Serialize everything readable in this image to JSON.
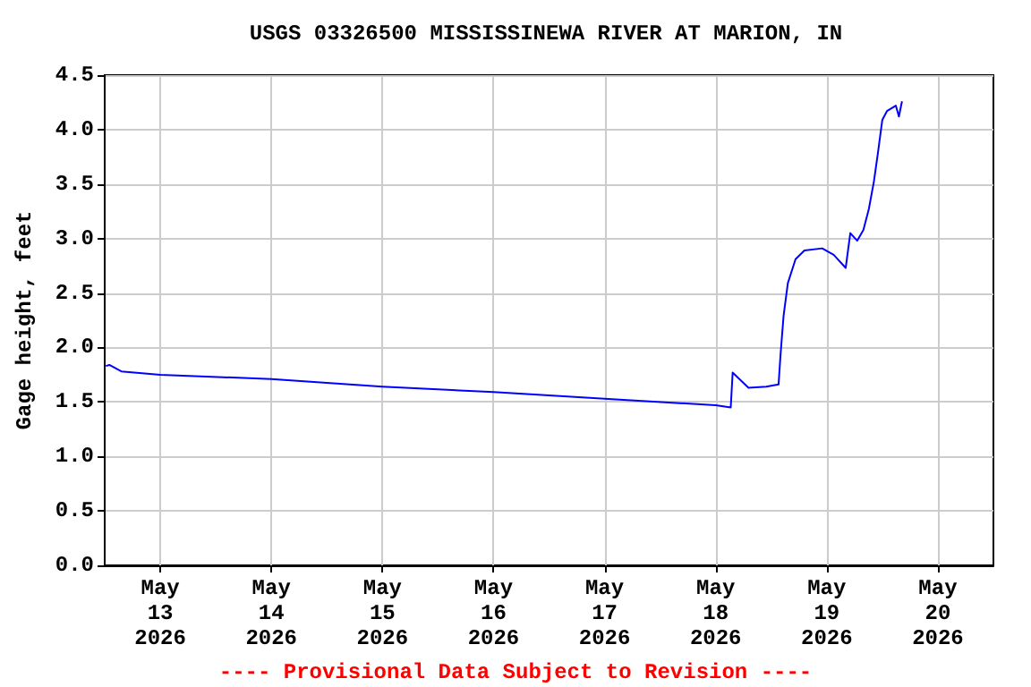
{
  "chart_data": {
    "type": "line",
    "title": "USGS 03326500 MISSISSINEWA RIVER AT MARION, IN",
    "ylabel": "Gage height, feet",
    "annotations": [
      "---- Provisional Data Subject to Revision ----"
    ],
    "series": [
      {
        "color": "#0000ff",
        "x": [
          "2026-05-12T12:15",
          "2026-05-12T13:00",
          "2026-05-12T15:35",
          "2026-05-13T00:00",
          "2026-05-14T00:00",
          "2026-05-15T00:00",
          "2026-05-16T00:00",
          "2026-05-17T00:00",
          "2026-05-18T00:00",
          "2026-05-18T03:15",
          "2026-05-18T03:40",
          "2026-05-18T07:05",
          "2026-05-18T10:55",
          "2026-05-18T13:35",
          "2026-05-18T14:00",
          "2026-05-18T14:40",
          "2026-05-18T15:35",
          "2026-05-18T17:15",
          "2026-05-18T19:10",
          "2026-05-18T23:00",
          "2026-05-19T01:30",
          "2026-05-19T04:05",
          "2026-05-19T05:05",
          "2026-05-19T06:35",
          "2026-05-19T07:55",
          "2026-05-19T09:05",
          "2026-05-19T10:10",
          "2026-05-19T11:00",
          "2026-05-19T12:00",
          "2026-05-19T13:00",
          "2026-05-19T14:55",
          "2026-05-19T15:35",
          "2026-05-19T16:15"
        ],
        "values": [
          1.83,
          1.84,
          1.78,
          1.75,
          1.71,
          1.64,
          1.59,
          1.53,
          1.47,
          1.45,
          1.77,
          1.63,
          1.64,
          1.66,
          1.93,
          2.29,
          2.59,
          2.81,
          2.89,
          2.91,
          2.85,
          2.73,
          3.05,
          2.98,
          3.08,
          3.27,
          3.52,
          3.77,
          4.09,
          4.17,
          4.22,
          4.12,
          4.26
        ]
      }
    ],
    "xlim": [
      "2026-05-12T12:00",
      "2026-05-20T12:00"
    ],
    "xticks": [
      {
        "value": "2026-05-13",
        "label": "May\n13\n2026"
      },
      {
        "value": "2026-05-14",
        "label": "May\n14\n2026"
      },
      {
        "value": "2026-05-15",
        "label": "May\n15\n2026"
      },
      {
        "value": "2026-05-16",
        "label": "May\n16\n2026"
      },
      {
        "value": "2026-05-17",
        "label": "May\n17\n2026"
      },
      {
        "value": "2026-05-18",
        "label": "May\n18\n2026"
      },
      {
        "value": "2026-05-19",
        "label": "May\n19\n2026"
      },
      {
        "value": "2026-05-20",
        "label": "May\n20\n2026"
      }
    ],
    "ylim": [
      0,
      4.5
    ],
    "yticks": [
      {
        "value": 0,
        "label": "0.0"
      },
      {
        "value": 0.5,
        "label": "0.5"
      },
      {
        "value": 1,
        "label": "1.0"
      },
      {
        "value": 1.5,
        "label": "1.5"
      },
      {
        "value": 2,
        "label": "2.0"
      },
      {
        "value": 2.5,
        "label": "2.5"
      },
      {
        "value": 3,
        "label": "3.0"
      },
      {
        "value": 3.5,
        "label": "3.5"
      },
      {
        "value": 4,
        "label": "4.0"
      },
      {
        "value": 4.5,
        "label": "4.5"
      }
    ],
    "grid": true,
    "marker": "none",
    "line_style": "solid"
  }
}
